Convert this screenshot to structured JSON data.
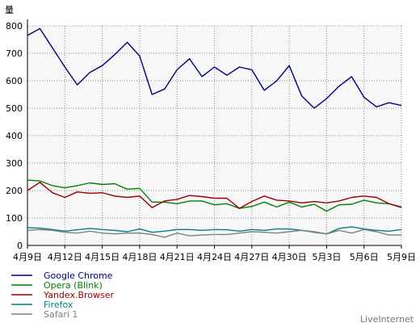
{
  "chart_data": {
    "type": "line",
    "ylabel": "量",
    "ylim": [
      0,
      800
    ],
    "yticks": [
      0,
      100,
      200,
      300,
      400,
      500,
      600,
      700,
      800
    ],
    "grid": true,
    "legend_position": "bottom-left",
    "x": [
      "4月9日",
      "4月10日",
      "4月11日",
      "4月12日",
      "4月13日",
      "4月14日",
      "4月15日",
      "4月16日",
      "4月17日",
      "4月18日",
      "4月19日",
      "4月20日",
      "4月21日",
      "4月22日",
      "4月23日",
      "4月24日",
      "4月25日",
      "4月26日",
      "4月27日",
      "4月28日",
      "4月29日",
      "4月30日",
      "5月1日",
      "5月2日",
      "5月3日",
      "5月4日",
      "5月5日",
      "5月6日",
      "5月7日",
      "5月8日",
      "5月9日"
    ],
    "xtick_labels": [
      {
        "index": 0,
        "label": "4月9日"
      },
      {
        "index": 3,
        "label": "4月12日"
      },
      {
        "index": 6,
        "label": "4月15日"
      },
      {
        "index": 9,
        "label": "4月18日"
      },
      {
        "index": 12,
        "label": "4月21日"
      },
      {
        "index": 15,
        "label": "4月24日"
      },
      {
        "index": 18,
        "label": "4月27日"
      },
      {
        "index": 21,
        "label": "4月30日"
      },
      {
        "index": 24,
        "label": "5月3日"
      },
      {
        "index": 27,
        "label": "5月6日"
      },
      {
        "index": 30,
        "label": "5月9日"
      }
    ],
    "series": [
      {
        "name": "Google Chrome",
        "color": "#000080",
        "values": [
          765,
          790,
          720,
          650,
          585,
          630,
          655,
          695,
          740,
          690,
          550,
          570,
          640,
          680,
          615,
          650,
          620,
          650,
          640,
          565,
          600,
          655,
          545,
          500,
          535,
          580,
          615,
          540,
          505,
          520,
          510
        ]
      },
      {
        "name": "Opera (Blink)",
        "color": "#008000",
        "values": [
          238,
          235,
          218,
          210,
          218,
          228,
          222,
          225,
          205,
          208,
          158,
          158,
          152,
          162,
          162,
          148,
          152,
          135,
          142,
          158,
          140,
          158,
          140,
          150,
          125,
          148,
          150,
          165,
          155,
          152,
          138
        ]
      },
      {
        "name": "Yandex.Browser",
        "color": "#990000",
        "values": [
          200,
          230,
          192,
          175,
          195,
          190,
          192,
          180,
          175,
          180,
          138,
          162,
          168,
          182,
          178,
          172,
          172,
          135,
          160,
          180,
          165,
          162,
          155,
          160,
          155,
          162,
          175,
          180,
          175,
          152,
          140
        ]
      },
      {
        "name": "Firefox",
        "color": "#008080",
        "values": [
          65,
          63,
          58,
          52,
          57,
          62,
          58,
          55,
          50,
          60,
          48,
          52,
          58,
          58,
          55,
          58,
          57,
          52,
          58,
          55,
          60,
          60,
          55,
          48,
          42,
          62,
          68,
          60,
          55,
          52,
          58
        ]
      },
      {
        "name": "Safari 1",
        "color": "#808080",
        "values": [
          55,
          58,
          55,
          48,
          45,
          52,
          45,
          42,
          45,
          45,
          40,
          30,
          45,
          35,
          38,
          40,
          40,
          45,
          50,
          48,
          45,
          50,
          55,
          50,
          42,
          55,
          45,
          58,
          50,
          38,
          38
        ]
      }
    ]
  },
  "brand": "LiveInternet"
}
